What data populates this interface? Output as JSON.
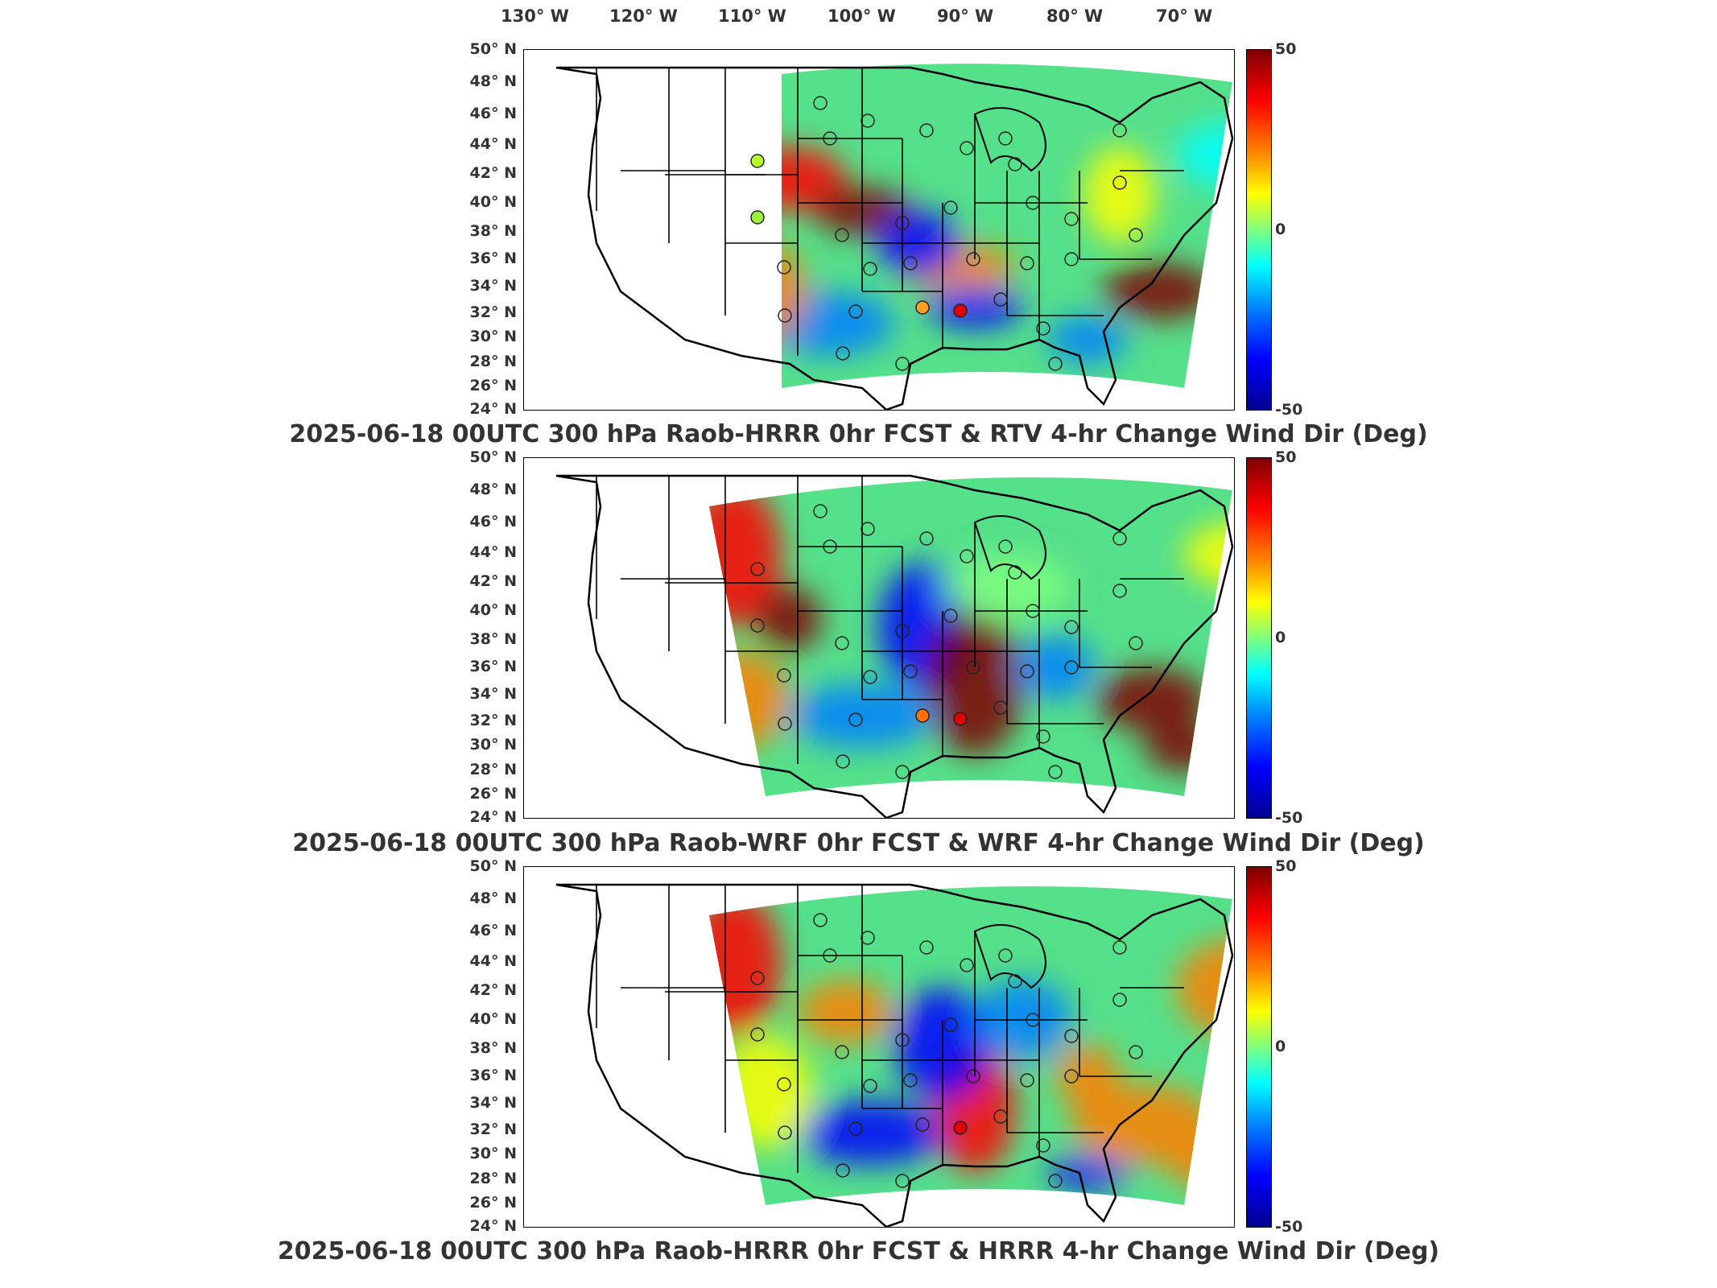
{
  "longitude_labels": [
    "130° W",
    "120° W",
    "110° W",
    "100° W",
    "90° W",
    "80° W",
    "70° W"
  ],
  "latitude_labels": [
    "50° N",
    "48° N",
    "46° N",
    "44° N",
    "42° N",
    "40° N",
    "38° N",
    "36° N",
    "34° N",
    "32° N",
    "30° N",
    "28° N",
    "26° N",
    "24° N"
  ],
  "colorbar": {
    "max_label": "50",
    "mid_label": "0",
    "min_label": "-50",
    "range": [
      -50,
      50
    ],
    "colors": [
      "#7f0000",
      "#ff0000",
      "#ff7f00",
      "#ffff00",
      "#7fff7f",
      "#00ffff",
      "#007fff",
      "#0000ff",
      "#00008f"
    ]
  },
  "panels": [
    {
      "title": "2025-06-18 00UTC 300 hPa Raob-HRRR 0hr FCST & RTV 4-hr Change Wind Dir (Deg)"
    },
    {
      "title": "2025-06-18 00UTC 300 hPa Raob-WRF 0hr FCST & WRF 4-hr Change Wind Dir (Deg)"
    },
    {
      "title": "2025-06-18 00UTC 300 hPa Raob-HRRR 0hr FCST & HRRR 4-hr Change Wind Dir (Deg)"
    }
  ]
}
